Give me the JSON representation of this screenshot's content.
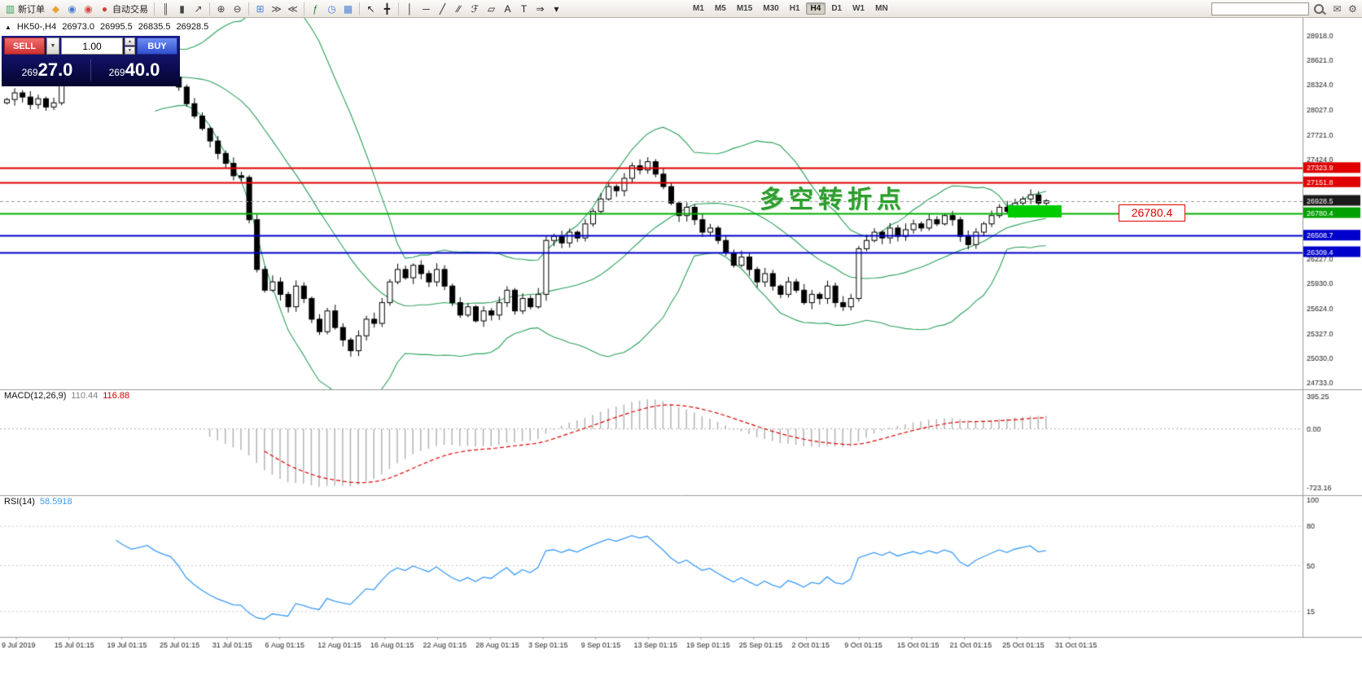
{
  "toolbar": {
    "items": [
      {
        "type": "button",
        "name": "new-order-button",
        "glyph": "▥",
        "color": "#3aa05a",
        "label": "新订单"
      },
      {
        "type": "icon",
        "name": "favorites-icon",
        "glyph": "◆",
        "color": "#e8a23c"
      },
      {
        "type": "icon",
        "name": "profile-icon",
        "glyph": "◉",
        "color": "#4a7fd4"
      },
      {
        "type": "icon",
        "name": "community-icon",
        "glyph": "◉",
        "color": "#d44a4a"
      },
      {
        "type": "button",
        "name": "autotrading-button",
        "glyph": "●",
        "color": "#d04040",
        "label": "自动交易"
      },
      {
        "type": "sep"
      },
      {
        "type": "icon",
        "name": "bars-chart-icon",
        "glyph": "║",
        "color": "#444444"
      },
      {
        "type": "icon",
        "name": "candlestick-chart-icon",
        "glyph": "▮",
        "color": "#444444"
      },
      {
        "type": "icon",
        "name": "line-chart-icon",
        "glyph": "↗",
        "color": "#444444"
      },
      {
        "type": "sep"
      },
      {
        "type": "icon",
        "name": "zoom-in-icon",
        "glyph": "⊕",
        "color": "#444444"
      },
      {
        "type": "icon",
        "name": "zoom-out-icon",
        "glyph": "⊖",
        "color": "#444444"
      },
      {
        "type": "sep"
      },
      {
        "type": "icon",
        "name": "tile-windows-icon",
        "glyph": "⊞",
        "color": "#4a7fd4"
      },
      {
        "type": "icon",
        "name": "auto-scroll-icon",
        "glyph": "≫",
        "color": "#444444"
      },
      {
        "type": "icon",
        "name": "chart-shift-icon",
        "glyph": "≪",
        "color": "#444444"
      },
      {
        "type": "sep"
      },
      {
        "type": "icon",
        "name": "indicators-icon",
        "glyph": "ƒ",
        "color": "#2e7d32"
      },
      {
        "type": "icon",
        "name": "periods-icon",
        "glyph": "◷",
        "color": "#4a7fd4"
      },
      {
        "type": "icon",
        "name": "templates-icon",
        "glyph": "▦",
        "color": "#4a7fd4"
      },
      {
        "type": "sep"
      },
      {
        "type": "icon",
        "name": "cursor-icon",
        "glyph": "↖",
        "color": "#222222"
      },
      {
        "type": "icon",
        "name": "crosshair-icon",
        "glyph": "╋",
        "color": "#222222"
      },
      {
        "type": "sep"
      },
      {
        "type": "icon",
        "name": "vertical-line-icon",
        "glyph": "│",
        "color": "#222222"
      },
      {
        "type": "icon",
        "name": "horizontal-line-icon",
        "glyph": "─",
        "color": "#222222"
      },
      {
        "type": "icon",
        "name": "trendline-icon",
        "glyph": "╱",
        "color": "#222222"
      },
      {
        "type": "icon",
        "name": "channel-icon",
        "glyph": "∕∕",
        "color": "#222222"
      },
      {
        "type": "icon",
        "name": "fibonacci-icon",
        "glyph": "ℱ",
        "color": "#222222"
      },
      {
        "type": "icon",
        "name": "shapes-icon",
        "glyph": "▱",
        "color": "#222222"
      },
      {
        "type": "icon",
        "name": "text-icon",
        "glyph": "A",
        "color": "#222222"
      },
      {
        "type": "icon",
        "name": "label-icon",
        "glyph": "T",
        "color": "#222222"
      },
      {
        "type": "icon",
        "name": "arrow-tools-icon",
        "glyph": "⇒",
        "color": "#222222"
      },
      {
        "type": "icon",
        "name": "more-objects-dropdown-icon",
        "glyph": "▾",
        "color": "#222222"
      },
      {
        "type": "gap"
      }
    ],
    "timeframes": {
      "label_names": [
        "M1",
        "M5",
        "M15",
        "M30",
        "H1",
        "H4",
        "D1",
        "W1",
        "MN"
      ],
      "active": "H4"
    },
    "search": {
      "value": ""
    }
  },
  "trade_panel": {
    "sell_label": "SELL",
    "buy_label": "BUY",
    "volume": "1.00",
    "sell_price": {
      "small": "269",
      "big": "27.0"
    },
    "buy_price": {
      "small": "269",
      "big": "40.0"
    }
  },
  "chart": {
    "symbol_line": {
      "marker": "▲",
      "symbol": "HK50-,H4",
      "open": "26973.0",
      "high": "26995.5",
      "low": "26835.5",
      "close": "26928.5"
    },
    "annotations": {
      "note_text": "多空转折点",
      "note_color": "#2f9e2f",
      "zone": {
        "x": 1238,
        "y_page": 252,
        "w": 66,
        "h": 15,
        "color": "#00cc00"
      },
      "price_callout": {
        "text": "26780.4",
        "color": "#e00000"
      }
    }
  },
  "price_axis": {
    "ticks": [
      "28918.0",
      "28621.0",
      "28324.0",
      "28027.0",
      "27721.0",
      "27424.0",
      "26227.0",
      "25930.0",
      "25624.0",
      "25327.0",
      "25030.0",
      "24733.0"
    ],
    "tags": [
      {
        "label": "27323.9",
        "bg": "#e00000",
        "fg": "#ffffff"
      },
      {
        "label": "27151.8",
        "bg": "#e00000",
        "fg": "#ffffff"
      },
      {
        "label": "26928.5",
        "bg": "#1a1a1a",
        "fg": "#ffffff"
      },
      {
        "label": "26780.4",
        "bg": "#00a000",
        "fg": "#ffffff"
      },
      {
        "label": "26508.7",
        "bg": "#0000cc",
        "fg": "#ffffff"
      },
      {
        "label": "26309.4",
        "bg": "#0000cc",
        "fg": "#ffffff"
      }
    ]
  },
  "hlines": [
    {
      "price": 27323.9,
      "color": "#e00000",
      "width": 2,
      "style": "solid"
    },
    {
      "price": 27151.8,
      "color": "#e00000",
      "width": 2,
      "style": "solid"
    },
    {
      "price": 26928.5,
      "color": "#999999",
      "width": 1,
      "style": "dash"
    },
    {
      "price": 26780.4,
      "color": "#00b000",
      "width": 2,
      "style": "solid"
    },
    {
      "price": 26508.7,
      "color": "#0000cc",
      "width": 2,
      "style": "solid"
    },
    {
      "price": 26309.4,
      "color": "#0000cc",
      "width": 2,
      "style": "solid"
    }
  ],
  "indicators": {
    "macd": {
      "name": "MACD(12,26,9)",
      "main_value": "110.44",
      "signal_value": "116.88",
      "axis_labels": [
        "395.25",
        "0.00",
        "-723.16"
      ],
      "hist_color": "#b4b4b4",
      "signal_color": "#e00000",
      "main_value_color": "#808080",
      "signal_value_color": "#cc0000"
    },
    "rsi": {
      "name": "RSI(14)",
      "value": "58.5918",
      "axis_labels": [
        "100",
        "80",
        "50",
        "15"
      ],
      "levels": [
        80,
        50,
        15
      ],
      "color": "#3b9bf5"
    }
  },
  "time_axis": {
    "labels": [
      "9 Jul 2019",
      "15 Jul 01:15",
      "19 Jul 01:15",
      "25 Jul 01:15",
      "31 Jul 01:15",
      "6 Aug 01:15",
      "12 Aug 01:15",
      "16 Aug 01:15",
      "22 Aug 01:15",
      "28 Aug 01:15",
      "3 Sep 01:15",
      "9 Sep 01:15",
      "13 Sep 01:15",
      "19 Sep 01:15",
      "25 Sep 01:15",
      "2 Oct 01:15",
      "9 Oct 01:15",
      "15 Oct 01:15",
      "21 Oct 01:15",
      "25 Oct 01:15",
      "31 Oct 01:15"
    ]
  },
  "chart_data": {
    "type": "candlestick",
    "symbol": "HK50-",
    "timeframe": "H4",
    "ohlc_header": {
      "open": 26973.0,
      "high": 26995.5,
      "low": 26835.5,
      "close": 26928.5
    },
    "y_range": {
      "top": 28918.0,
      "bottom": 24733.0
    },
    "levels": [
      27323.9,
      27151.8,
      26780.4,
      26508.7,
      26309.4
    ],
    "current_bid": 26928.5,
    "bollinger": {
      "period": 20,
      "deviation": 2,
      "color": "#2aa05a"
    },
    "macd_reading": [
      110.44,
      116.88
    ],
    "rsi_reading": 58.5918,
    "closes": [
      28150,
      28230,
      28180,
      28090,
      28160,
      28060,
      28110,
      28400,
      28480,
      28550,
      28600,
      28560,
      28500,
      28540,
      28580,
      28520,
      28470,
      28510,
      28550,
      28490,
      28450,
      28420,
      28300,
      28100,
      27950,
      27800,
      27650,
      27500,
      27380,
      27230,
      27210,
      26700,
      26100,
      25850,
      25950,
      25800,
      25650,
      25900,
      25750,
      25500,
      25350,
      25600,
      25400,
      25250,
      25120,
      25300,
      25500,
      25450,
      25700,
      25950,
      26100,
      26000,
      26150,
      26050,
      25950,
      26100,
      25900,
      25700,
      25550,
      25650,
      25480,
      25600,
      25550,
      25700,
      25850,
      25600,
      25750,
      25650,
      25800,
      26450,
      26500,
      26420,
      26550,
      26480,
      26650,
      26800,
      26950,
      27100,
      27050,
      27200,
      27350,
      27300,
      27400,
      27250,
      27100,
      26900,
      26750,
      26850,
      26700,
      26550,
      26600,
      26450,
      26300,
      26150,
      26250,
      26100,
      25950,
      26050,
      25900,
      25800,
      25950,
      25850,
      25700,
      25800,
      25750,
      25900,
      25700,
      25650,
      25750,
      26350,
      26450,
      26550,
      26480,
      26600,
      26500,
      26580,
      26650,
      26600,
      26700,
      26650,
      26750,
      26700,
      26500,
      26400,
      26550,
      26650,
      26750,
      26850,
      26800,
      26900,
      26950,
      27000,
      26900,
      26928.5
    ]
  }
}
